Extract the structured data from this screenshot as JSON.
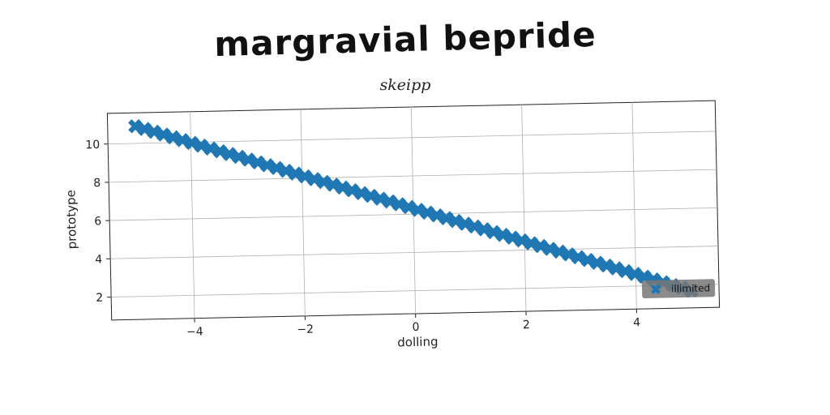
{
  "chart_data": {
    "type": "scatter",
    "title": "margravial bepride",
    "subtitle": "skeipp",
    "xlabel": "dolling",
    "ylabel": "prototype",
    "xlim": [
      -5.5,
      5.5
    ],
    "ylim": [
      0.8,
      11.6
    ],
    "xticks": [
      -4,
      -2,
      0,
      2,
      4
    ],
    "yticks": [
      2,
      4,
      6,
      8,
      10
    ],
    "grid": true,
    "legend_position": "bottom-right",
    "series": [
      {
        "name": "illimited",
        "color": "#1f77b4",
        "marker": "x",
        "slope": -0.92,
        "intercept": 6.3,
        "x_start": -5.0,
        "x_end": 5.0,
        "points": 60
      }
    ]
  }
}
